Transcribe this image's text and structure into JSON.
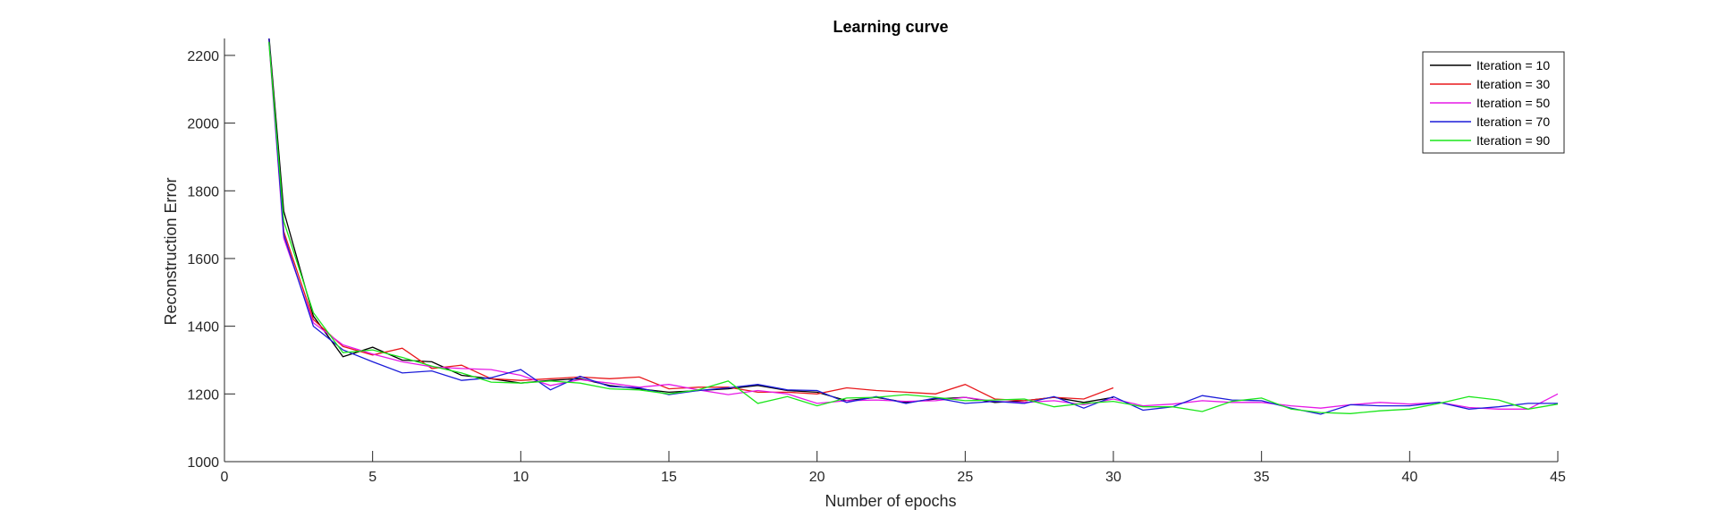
{
  "chart_data": {
    "type": "line",
    "title": "Learning curve",
    "xlabel": "Number of epochs",
    "ylabel": "Reconstruction Error",
    "xlim": [
      0,
      45
    ],
    "ylim": [
      1000,
      2250
    ],
    "xticks": [
      0,
      5,
      10,
      15,
      20,
      25,
      30,
      35,
      40,
      45
    ],
    "yticks": [
      1000,
      1200,
      1400,
      1600,
      1800,
      2000,
      2200
    ],
    "grid": false,
    "legend_position": "top-right",
    "series": [
      {
        "name": "Iteration = 10",
        "color": "#000000",
        "x": [
          1.5,
          2,
          3,
          4,
          5,
          6,
          7,
          8,
          9,
          10,
          11,
          12,
          13,
          14,
          15,
          16,
          17,
          18,
          19,
          20,
          21,
          22,
          23,
          24,
          25,
          26,
          27,
          28,
          29,
          30
        ],
        "values": [
          2260,
          1740,
          1430,
          1310,
          1338,
          1300,
          1295,
          1255,
          1245,
          1232,
          1240,
          1245,
          1225,
          1215,
          1205,
          1210,
          1215,
          1225,
          1210,
          1205,
          1180,
          1190,
          1175,
          1185,
          1190,
          1175,
          1180,
          1190,
          1175,
          1190
        ]
      },
      {
        "name": "Iteration = 30",
        "color": "#e8191c",
        "x": [
          1.5,
          2,
          3,
          4,
          5,
          6,
          7,
          8,
          9,
          10,
          11,
          12,
          13,
          14,
          15,
          16,
          17,
          18,
          19,
          20,
          21,
          22,
          23,
          24,
          25,
          26,
          27,
          28,
          29,
          30
        ],
        "values": [
          2250,
          1680,
          1420,
          1340,
          1315,
          1335,
          1275,
          1285,
          1245,
          1240,
          1245,
          1250,
          1245,
          1250,
          1215,
          1220,
          1220,
          1205,
          1205,
          1200,
          1218,
          1210,
          1205,
          1200,
          1228,
          1185,
          1180,
          1190,
          1185,
          1218
        ]
      },
      {
        "name": "Iteration = 50",
        "color": "#e619e6",
        "x": [
          1.5,
          2,
          3,
          4,
          5,
          6,
          7,
          8,
          9,
          10,
          11,
          12,
          13,
          14,
          15,
          16,
          17,
          18,
          19,
          20,
          21,
          22,
          23,
          24,
          25,
          26,
          27,
          28,
          29,
          30,
          31,
          32,
          33,
          34,
          35,
          36,
          37,
          38,
          39,
          40,
          41,
          42,
          43,
          44,
          45
        ],
        "values": [
          2240,
          1660,
          1410,
          1345,
          1318,
          1295,
          1280,
          1275,
          1272,
          1255,
          1225,
          1242,
          1232,
          1220,
          1228,
          1212,
          1198,
          1210,
          1200,
          1172,
          1180,
          1182,
          1178,
          1180,
          1190,
          1178,
          1175,
          1180,
          1168,
          1185,
          1165,
          1170,
          1180,
          1175,
          1175,
          1165,
          1158,
          1168,
          1175,
          1170,
          1175,
          1160,
          1155,
          1155,
          1200
        ]
      },
      {
        "name": "Iteration = 70",
        "color": "#1c1cd9",
        "x": [
          1.5,
          2,
          3,
          4,
          5,
          6,
          7,
          8,
          9,
          10,
          11,
          12,
          13,
          14,
          15,
          16,
          17,
          18,
          19,
          20,
          21,
          22,
          23,
          24,
          25,
          26,
          27,
          28,
          29,
          30,
          31,
          32,
          33,
          34,
          35,
          36,
          37,
          38,
          39,
          40,
          41,
          42,
          43,
          44,
          45
        ],
        "values": [
          2250,
          1670,
          1400,
          1330,
          1295,
          1262,
          1268,
          1240,
          1248,
          1272,
          1212,
          1252,
          1222,
          1218,
          1198,
          1210,
          1218,
          1228,
          1212,
          1210,
          1175,
          1192,
          1172,
          1188,
          1172,
          1178,
          1172,
          1192,
          1158,
          1192,
          1152,
          1162,
          1195,
          1182,
          1180,
          1158,
          1140,
          1168,
          1165,
          1165,
          1175,
          1155,
          1162,
          1172,
          1172
        ]
      },
      {
        "name": "Iteration = 90",
        "color": "#1ae61a",
        "x": [
          1.5,
          2,
          3,
          4,
          5,
          6,
          7,
          8,
          9,
          10,
          11,
          12,
          13,
          14,
          15,
          16,
          17,
          18,
          19,
          20,
          21,
          22,
          23,
          24,
          25,
          26,
          27,
          28,
          29,
          30,
          31,
          32,
          33,
          34,
          35,
          36,
          37,
          38,
          39,
          40,
          41,
          42,
          43,
          44,
          45
        ],
        "values": [
          2240,
          1710,
          1440,
          1322,
          1330,
          1308,
          1282,
          1262,
          1235,
          1232,
          1238,
          1232,
          1215,
          1212,
          1200,
          1212,
          1238,
          1172,
          1192,
          1165,
          1188,
          1190,
          1198,
          1190,
          1180,
          1182,
          1185,
          1162,
          1172,
          1178,
          1162,
          1162,
          1148,
          1178,
          1188,
          1155,
          1145,
          1142,
          1150,
          1155,
          1172,
          1192,
          1182,
          1155,
          1170
        ]
      }
    ]
  }
}
